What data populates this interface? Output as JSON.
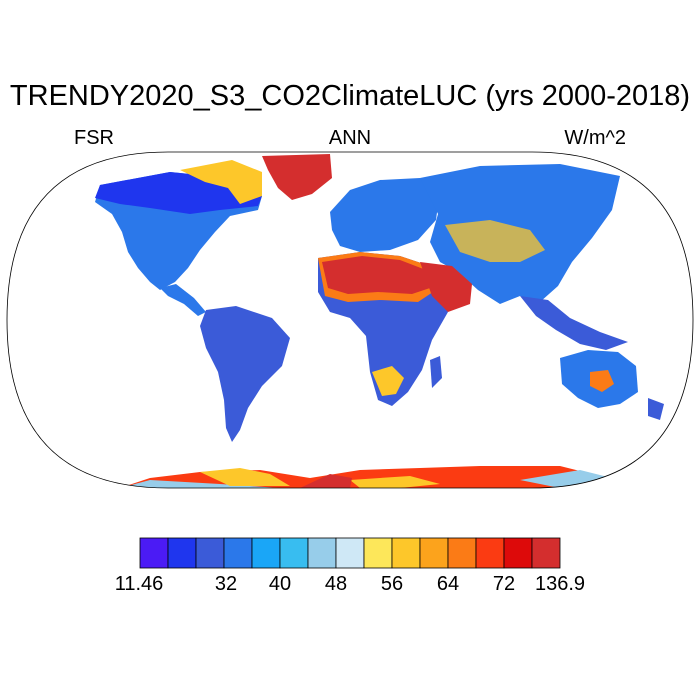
{
  "title": "TRENDY2020_S3_CO2ClimateLUC (yrs 2000-2018)",
  "left_label": "FSR",
  "center_label": "ANN",
  "right_label": "W/m^2",
  "colorbar": {
    "colors": [
      "#4b1bf5",
      "#1f36ee",
      "#3b5bd8",
      "#2b78ea",
      "#1aa6f7",
      "#38bdf0",
      "#97cdea",
      "#cfe8f6",
      "#fde75a",
      "#fdc72a",
      "#fca31c",
      "#fb7b16",
      "#fb3b12",
      "#dd0a0a",
      "#d42e2e"
    ],
    "tick_labels": [
      "11.46",
      "32",
      "40",
      "48",
      "56",
      "64",
      "72",
      "136.9"
    ]
  },
  "map_colors": {
    "ocean": "#ffffff",
    "tropics": "#3b5bd8",
    "temperate": "#2b78ea",
    "boreal": "#1f36ee",
    "desert": "#d42e2e",
    "desert_edge": "#fb7b16",
    "semiarid": "#fdc72a",
    "greenland": "#d42e2e",
    "antarctica_east": "#fb3b12",
    "antarctica_west": "#97cdea"
  }
}
